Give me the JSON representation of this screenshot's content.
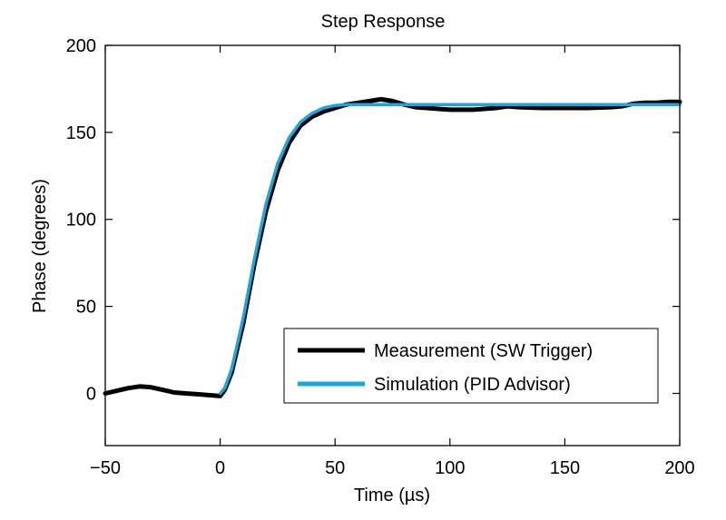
{
  "chart_data": {
    "type": "line",
    "title": "Step Response",
    "xlabel": "Time (µs)",
    "ylabel": "Phase (degrees)",
    "xlim": [
      -50,
      200
    ],
    "ylim": [
      -30,
      200
    ],
    "xticks": [
      -50,
      0,
      50,
      100,
      150,
      200
    ],
    "xtick_labels": [
      "−50",
      "0",
      "50",
      "100",
      "150",
      "200"
    ],
    "yticks": [
      0,
      50,
      100,
      150,
      200
    ],
    "ytick_labels": [
      "0",
      "50",
      "100",
      "150",
      "200"
    ],
    "grid": false,
    "legend_position": "bottom-right",
    "series": [
      {
        "name": "Measurement (SW Trigger)",
        "color": "#000000",
        "x": [
          -50,
          -45,
          -40,
          -35,
          -30,
          -25,
          -20,
          -15,
          -10,
          -5,
          0,
          2,
          5,
          10,
          15,
          20,
          25,
          30,
          35,
          40,
          45,
          50,
          55,
          60,
          65,
          70,
          75,
          80,
          85,
          90,
          95,
          100,
          105,
          110,
          115,
          120,
          125,
          130,
          140,
          150,
          160,
          170,
          175,
          180,
          185,
          190,
          195,
          200
        ],
        "y": [
          0,
          1.5,
          3,
          4,
          3.5,
          2,
          0.5,
          0,
          -0.5,
          -1,
          -1.5,
          2,
          12,
          40,
          75,
          105,
          128,
          144,
          154,
          159,
          162,
          164,
          166,
          167,
          168,
          169,
          168,
          166,
          164.5,
          164,
          163.5,
          163,
          163,
          163,
          163.5,
          164,
          165,
          164.5,
          164,
          164,
          164,
          164.5,
          165,
          166.5,
          167,
          167,
          167.5,
          167.5
        ]
      },
      {
        "name": "Simulation (PID Advisor)",
        "color": "#1aa7dd",
        "x": [
          0,
          2,
          5,
          10,
          15,
          20,
          25,
          30,
          35,
          40,
          45,
          50,
          55,
          60,
          65,
          70,
          80,
          100,
          125,
          150,
          175,
          200
        ],
        "y": [
          0,
          3,
          14,
          43,
          78,
          109,
          132,
          147,
          156,
          161,
          164,
          165.5,
          166,
          166,
          166,
          166,
          166,
          166,
          166,
          166,
          166,
          166
        ]
      }
    ]
  }
}
